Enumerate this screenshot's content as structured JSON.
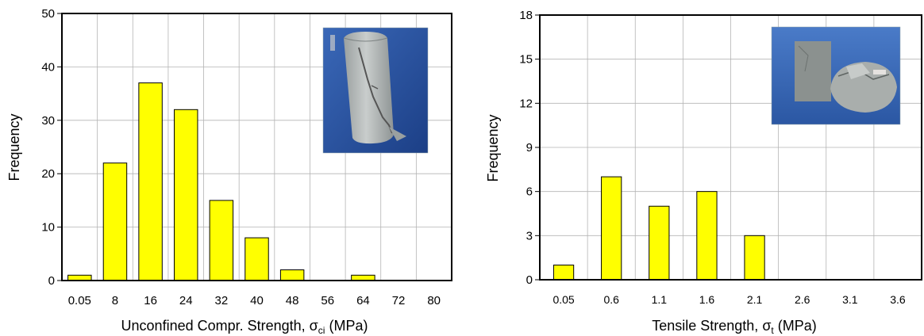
{
  "chart_data": [
    {
      "type": "bar",
      "categories": [
        "0.05",
        "8",
        "16",
        "24",
        "32",
        "40",
        "48",
        "56",
        "64",
        "72",
        "80"
      ],
      "values": [
        1,
        22,
        37,
        32,
        15,
        8,
        2,
        0,
        1,
        0,
        0
      ],
      "ylim": [
        0,
        50
      ],
      "yticks": [
        "0",
        "10",
        "20",
        "30",
        "40",
        "50"
      ],
      "ylabel": "Frequency",
      "xlabel_main": "Unconfined Compr. Strength, σ",
      "xlabel_sub": "ci",
      "xlabel_unit": " (MPa)",
      "grid": true,
      "bar_color": "#ffff00",
      "inset_photo": "cylindrical-rock-core-photo"
    },
    {
      "type": "bar",
      "categories": [
        "0.05",
        "0.6",
        "1.1",
        "1.6",
        "2.1",
        "2.6",
        "3.1",
        "3.6"
      ],
      "values": [
        1,
        7,
        5,
        6,
        3,
        0,
        0,
        0
      ],
      "ylim": [
        0,
        18
      ],
      "yticks": [
        "0",
        "3",
        "6",
        "9",
        "12",
        "15",
        "18"
      ],
      "ylabel": "Frequency",
      "xlabel_main": "Tensile Strength, σ",
      "xlabel_sub": "t",
      "xlabel_unit": " (MPa)",
      "grid": true,
      "bar_color": "#ffff00",
      "inset_photo": "split-rock-disc-photo"
    }
  ]
}
